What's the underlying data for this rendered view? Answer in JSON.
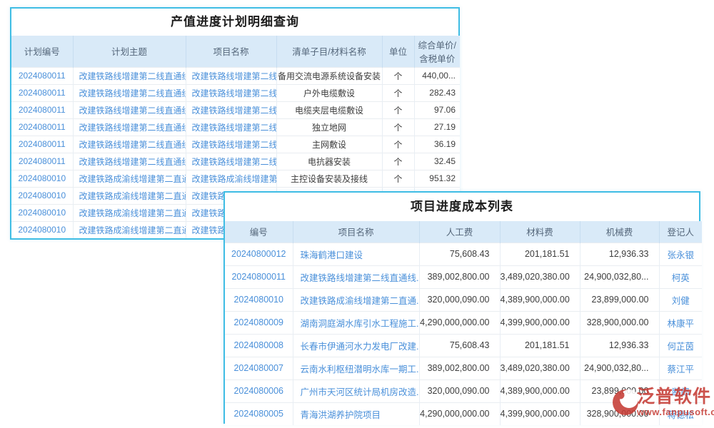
{
  "colors": {
    "card_border": "#3fbde4",
    "header_bg": "#d9eaf8",
    "link_blue": "#4a90da",
    "text_dark": "#3d3d3d",
    "brand_red": "#c63c35"
  },
  "tables": [
    {
      "title": "产值进度计划明细查询",
      "columns": [
        {
          "label": "计划编号",
          "style": "link"
        },
        {
          "label": "计划主题",
          "style": "link"
        },
        {
          "label": "项目名称",
          "style": "link"
        },
        {
          "label": "清单子目/材料名称",
          "style": "text"
        },
        {
          "label": "单位",
          "style": "text"
        },
        {
          "label": "综合单价/含税单价",
          "style": "text"
        }
      ],
      "rows": [
        [
          "2024080011",
          "改建铁路线增建第二线直通线",
          "改建铁路线增建第二线直通线",
          "备用交流电源系统设备安装",
          "个",
          "440,00..."
        ],
        [
          "2024080011",
          "改建铁路线增建第二线直通线",
          "改建铁路线增建第二线直通线",
          "户外电缆敷设",
          "个",
          "282.43"
        ],
        [
          "2024080011",
          "改建铁路线增建第二线直通线",
          "改建铁路线增建第二线直通线",
          "电缆夹层电缆敷设",
          "个",
          "97.06"
        ],
        [
          "2024080011",
          "改建铁路线增建第二线直通线",
          "改建铁路线增建第二线直通线",
          "独立地网",
          "个",
          "27.19"
        ],
        [
          "2024080011",
          "改建铁路线增建第二线直通线",
          "改建铁路线增建第二线直通线",
          "主网敷设",
          "个",
          "36.19"
        ],
        [
          "2024080011",
          "改建铁路线增建第二线直通线",
          "改建铁路线增建第二线直通线",
          "电抗器安装",
          "个",
          "32.45"
        ],
        [
          "2024080010",
          "改建铁路成渝线增建第二直通",
          "改建铁路成渝线增建第二直通",
          "主控设备安装及接线",
          "个",
          "951.32"
        ],
        [
          "2024080010",
          "改建铁路成渝线增建第二直通",
          "改建铁路成渝线增建第二直通",
          "",
          "",
          ""
        ],
        [
          "2024080010",
          "改建铁路成渝线增建第二直通",
          "改建铁路成渝线增建第二直通",
          "",
          "",
          ""
        ],
        [
          "2024080010",
          "改建铁路成渝线增建第二直通",
          "改建铁路成渝线增建第二直通",
          "",
          "",
          ""
        ]
      ]
    },
    {
      "title": "项目进度成本列表",
      "columns": [
        {
          "label": "编号",
          "style": "link"
        },
        {
          "label": "项目名称",
          "style": "link"
        },
        {
          "label": "人工费",
          "style": "text"
        },
        {
          "label": "材料费",
          "style": "text"
        },
        {
          "label": "机械费",
          "style": "text"
        },
        {
          "label": "登记人",
          "style": "link"
        }
      ],
      "rows": [
        [
          "20240800012",
          "珠海鹤港口建设",
          "75,608.43",
          "201,181.51",
          "12,936.33",
          "张永银"
        ],
        [
          "20240800011",
          "改建铁路线增建第二线直通线...",
          "389,002,800.00",
          "3,489,020,380.00",
          "24,900,032,80...",
          "柯英"
        ],
        [
          "2024080010",
          "改建铁路成渝线增建第二直通...",
          "320,000,090.00",
          "4,389,900,000.00",
          "23,899,000.00",
          "刘健"
        ],
        [
          "2024080009",
          "湖南洞庭湖水库引水工程施工...",
          "4,290,000,000.00",
          "4,399,900,000.00",
          "328,900,000.00",
          "林康平"
        ],
        [
          "2024080008",
          "长春市伊通河水力发电厂改建...",
          "75,608.43",
          "201,181.51",
          "12,936.33",
          "何芷茵"
        ],
        [
          "2024080007",
          "云南水利枢纽潜明水库一期工...",
          "389,002,800.00",
          "3,489,020,380.00",
          "24,900,032,80...",
          "蔡江平"
        ],
        [
          "2024080006",
          "广州市天河区统计局机房改造...",
          "320,000,090.00",
          "4,389,900,000.00",
          "23,899,000.00",
          "断郎"
        ],
        [
          "2024080005",
          "青海洪湖养护院项目",
          "4,290,000,000.00",
          "4,399,900,000.00",
          "328,900,000.00",
          "蒋德松"
        ]
      ]
    }
  ],
  "logo": {
    "brand": "泛普软件",
    "url": "www.fanpusoft.com"
  }
}
